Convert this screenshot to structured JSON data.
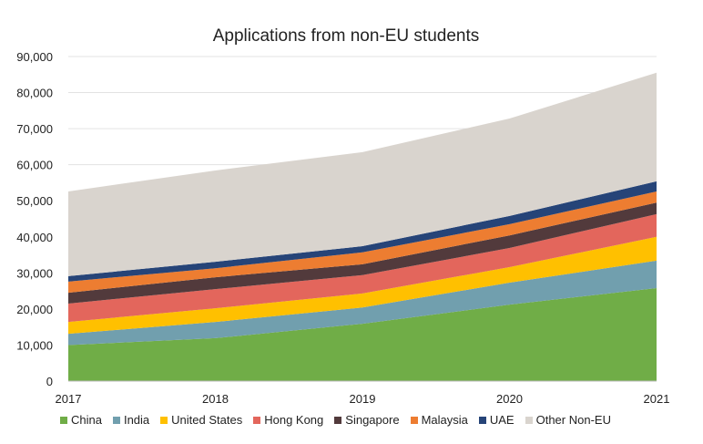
{
  "chart_data": {
    "type": "area",
    "stacked": true,
    "title": "Applications from non-EU students",
    "xlabel": "",
    "ylabel": "",
    "x": [
      "2017",
      "2018",
      "2019",
      "2020",
      "2021"
    ],
    "ylim": [
      0,
      90000
    ],
    "yticks": [
      0,
      10000,
      20000,
      30000,
      40000,
      50000,
      60000,
      70000,
      80000,
      90000
    ],
    "ytick_labels": [
      "0",
      "10,000",
      "20,000",
      "30,000",
      "40,000",
      "50,000",
      "60,000",
      "70,000",
      "80,000",
      "90,000"
    ],
    "grid": true,
    "legend_position": "bottom",
    "series": [
      {
        "name": "China",
        "color": "#70ad47",
        "values": [
          10000,
          11900,
          15900,
          21200,
          25800
        ]
      },
      {
        "name": "India",
        "color": "#719fae",
        "values": [
          3100,
          4500,
          4500,
          6100,
          7600
        ]
      },
      {
        "name": "United States",
        "color": "#ffc000",
        "values": [
          3300,
          3800,
          3900,
          4300,
          6600
        ]
      },
      {
        "name": "Hong Kong",
        "color": "#e3665c",
        "values": [
          5100,
          5300,
          5100,
          5300,
          6300
        ]
      },
      {
        "name": "Singapore",
        "color": "#523a3c",
        "values": [
          3000,
          3300,
          3000,
          3500,
          3200
        ]
      },
      {
        "name": "Malaysia",
        "color": "#ed7d31",
        "values": [
          3100,
          2500,
          3300,
          3100,
          3100
        ]
      },
      {
        "name": "UAE",
        "color": "#264478",
        "values": [
          1500,
          1800,
          1700,
          2300,
          2800
        ]
      },
      {
        "name": "Other Non-EU",
        "color": "#d9d4ce",
        "values": [
          23500,
          25300,
          26100,
          27000,
          30100
        ]
      }
    ]
  }
}
